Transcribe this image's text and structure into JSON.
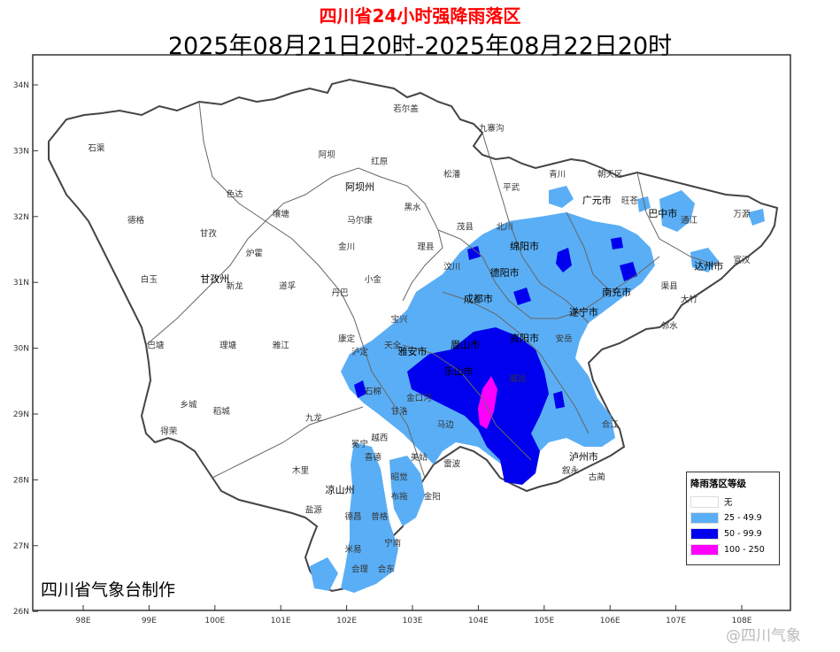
{
  "title": "四川省24小时强降雨落区",
  "subtitle": "2025年08月21日20时-2025年08月22日20时",
  "maker": "四川省气象台制作",
  "watermark": "@四川气象",
  "lon_ticks": [
    "98E",
    "99E",
    "100E",
    "101E",
    "102E",
    "103E",
    "104E",
    "105E",
    "106E",
    "107E",
    "108E"
  ],
  "lat_ticks": [
    "34N",
    "33N",
    "32N",
    "31N",
    "30N",
    "29N",
    "28N",
    "27N",
    "26N"
  ],
  "legend": {
    "title": "降雨落区等级",
    "items": [
      {
        "label": "无",
        "color": "#ffffff"
      },
      {
        "label": "25 - 49.9",
        "color": "#5aaef5"
      },
      {
        "label": "50 - 99.9",
        "color": "#0000ee"
      },
      {
        "label": "100 - 250",
        "color": "#ff00ff"
      }
    ]
  },
  "prefectures": [
    {
      "name": "阿坝州",
      "lon": 102.2,
      "lat": 32.4
    },
    {
      "name": "甘孜州",
      "lon": 100.0,
      "lat": 31.0
    },
    {
      "name": "凉山州",
      "lon": 101.9,
      "lat": 27.8
    },
    {
      "name": "成都市",
      "lon": 104.0,
      "lat": 30.7
    },
    {
      "name": "德阳市",
      "lon": 104.4,
      "lat": 31.1
    },
    {
      "name": "绵阳市",
      "lon": 104.7,
      "lat": 31.5
    },
    {
      "name": "广元市",
      "lon": 105.8,
      "lat": 32.2
    },
    {
      "name": "巴中市",
      "lon": 106.8,
      "lat": 32.0
    },
    {
      "name": "达州市",
      "lon": 107.5,
      "lat": 31.2
    },
    {
      "name": "南充市",
      "lon": 106.1,
      "lat": 30.8
    },
    {
      "name": "遂宁市",
      "lon": 105.6,
      "lat": 30.5
    },
    {
      "name": "资阳市",
      "lon": 104.7,
      "lat": 30.1
    },
    {
      "name": "雅安市",
      "lon": 103.0,
      "lat": 29.9
    },
    {
      "name": "乐山市",
      "lon": 103.7,
      "lat": 29.6
    },
    {
      "name": "眉山市",
      "lon": 103.8,
      "lat": 30.0
    },
    {
      "name": "泸州市",
      "lon": 105.6,
      "lat": 28.3
    }
  ],
  "cities": [
    {
      "name": "石渠",
      "lon": 98.2,
      "lat": 33.0
    },
    {
      "name": "德格",
      "lon": 98.8,
      "lat": 31.9
    },
    {
      "name": "白玉",
      "lon": 99.0,
      "lat": 31.0
    },
    {
      "name": "巴塘",
      "lon": 99.1,
      "lat": 30.0
    },
    {
      "name": "乡城",
      "lon": 99.6,
      "lat": 29.1
    },
    {
      "name": "得荣",
      "lon": 99.3,
      "lat": 28.7
    },
    {
      "name": "稻城",
      "lon": 100.1,
      "lat": 29.0
    },
    {
      "name": "理塘",
      "lon": 100.2,
      "lat": 30.0
    },
    {
      "name": "雅江",
      "lon": 101.0,
      "lat": 30.0
    },
    {
      "name": "新龙",
      "lon": 100.3,
      "lat": 30.9
    },
    {
      "name": "甘孜",
      "lon": 99.9,
      "lat": 31.7
    },
    {
      "name": "色达",
      "lon": 100.3,
      "lat": 32.3
    },
    {
      "name": "炉霍",
      "lon": 100.6,
      "lat": 31.4
    },
    {
      "name": "道孚",
      "lon": 101.1,
      "lat": 30.9
    },
    {
      "name": "丹巴",
      "lon": 101.9,
      "lat": 30.8
    },
    {
      "name": "康定",
      "lon": 102.0,
      "lat": 30.1
    },
    {
      "name": "泸定",
      "lon": 102.2,
      "lat": 29.9
    },
    {
      "name": "九龙",
      "lon": 101.5,
      "lat": 28.9
    },
    {
      "name": "木里",
      "lon": 101.3,
      "lat": 28.1
    },
    {
      "name": "盐源",
      "lon": 101.5,
      "lat": 27.5
    },
    {
      "name": "壤塘",
      "lon": 101.0,
      "lat": 32.0
    },
    {
      "name": "金川",
      "lon": 102.0,
      "lat": 31.5
    },
    {
      "name": "马尔康",
      "lon": 102.2,
      "lat": 31.9
    },
    {
      "name": "小金",
      "lon": 102.4,
      "lat": 31.0
    },
    {
      "name": "阿坝",
      "lon": 101.7,
      "lat": 32.9
    },
    {
      "name": "红原",
      "lon": 102.5,
      "lat": 32.8
    },
    {
      "name": "若尔盖",
      "lon": 102.9,
      "lat": 33.6
    },
    {
      "name": "九寨沟",
      "lon": 104.2,
      "lat": 33.3
    },
    {
      "name": "松潘",
      "lon": 103.6,
      "lat": 32.6
    },
    {
      "name": "黑水",
      "lon": 103.0,
      "lat": 32.1
    },
    {
      "name": "理县",
      "lon": 103.2,
      "lat": 31.5
    },
    {
      "name": "茂县",
      "lon": 103.8,
      "lat": 31.8
    },
    {
      "name": "汶川",
      "lon": 103.6,
      "lat": 31.2
    },
    {
      "name": "平武",
      "lon": 104.5,
      "lat": 32.4
    },
    {
      "name": "青川",
      "lon": 105.2,
      "lat": 32.6
    },
    {
      "name": "北川",
      "lon": 104.4,
      "lat": 31.8
    },
    {
      "name": "宝兴",
      "lon": 102.8,
      "lat": 30.4
    },
    {
      "name": "天全",
      "lon": 102.7,
      "lat": 30.0
    },
    {
      "name": "石棉",
      "lon": 102.4,
      "lat": 29.3
    },
    {
      "name": "甘洛",
      "lon": 102.8,
      "lat": 29.0
    },
    {
      "name": "越西",
      "lon": 102.5,
      "lat": 28.6
    },
    {
      "name": "冕宁",
      "lon": 102.2,
      "lat": 28.5
    },
    {
      "name": "喜德",
      "lon": 102.4,
      "lat": 28.3
    },
    {
      "name": "昭觉",
      "lon": 102.8,
      "lat": 28.0
    },
    {
      "name": "美姑",
      "lon": 103.1,
      "lat": 28.3
    },
    {
      "name": "雷波",
      "lon": 103.6,
      "lat": 28.2
    },
    {
      "name": "金阳",
      "lon": 103.3,
      "lat": 27.7
    },
    {
      "name": "布拖",
      "lon": 102.8,
      "lat": 27.7
    },
    {
      "name": "普格",
      "lon": 102.5,
      "lat": 27.4
    },
    {
      "name": "宁南",
      "lon": 102.7,
      "lat": 27.0
    },
    {
      "name": "德昌",
      "lon": 102.1,
      "lat": 27.4
    },
    {
      "name": "米易",
      "lon": 102.1,
      "lat": 26.9
    },
    {
      "name": "会东",
      "lon": 102.6,
      "lat": 26.6
    },
    {
      "name": "会理",
      "lon": 102.2,
      "lat": 26.6
    },
    {
      "name": "朝天区",
      "lon": 106.0,
      "lat": 32.6
    },
    {
      "name": "旺苍",
      "lon": 106.3,
      "lat": 32.2
    },
    {
      "name": "通江",
      "lon": 107.2,
      "lat": 31.9
    },
    {
      "name": "万源",
      "lon": 108.0,
      "lat": 32.0
    },
    {
      "name": "宣汉",
      "lon": 108.0,
      "lat": 31.3
    },
    {
      "name": "大竹",
      "lon": 107.2,
      "lat": 30.7
    },
    {
      "name": "渠县",
      "lon": 106.9,
      "lat": 30.9
    },
    {
      "name": "邻水",
      "lon": 106.9,
      "lat": 30.3
    },
    {
      "name": "安岳",
      "lon": 105.3,
      "lat": 30.1
    },
    {
      "name": "威远",
      "lon": 104.6,
      "lat": 29.5
    },
    {
      "name": "叙永",
      "lon": 105.4,
      "lat": 28.1
    },
    {
      "name": "古蔺",
      "lon": 105.8,
      "lat": 28.0
    },
    {
      "name": "合江",
      "lon": 106.0,
      "lat": 28.8
    },
    {
      "name": "马边",
      "lon": 103.5,
      "lat": 28.8
    },
    {
      "name": "金口河",
      "lon": 103.1,
      "lat": 29.2
    }
  ],
  "chart_data": {
    "type": "map",
    "region": "Sichuan",
    "bounds": {
      "lon": [
        97.5,
        108.5
      ],
      "lat": [
        25.9,
        34.5
      ]
    },
    "categories": [
      "无",
      "25 - 49.9",
      "50 - 99.9",
      "100 - 250"
    ]
  }
}
